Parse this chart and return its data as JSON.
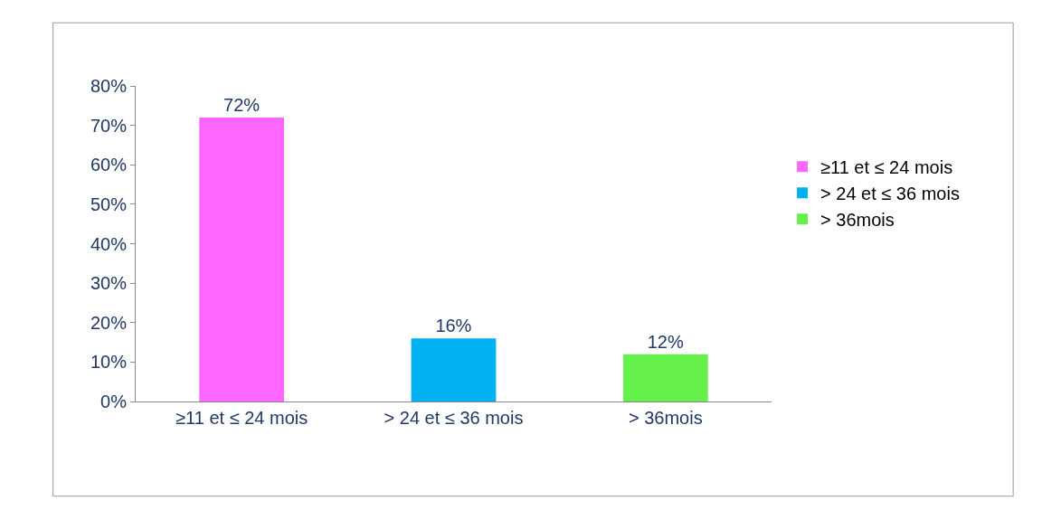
{
  "chart_data": {
    "type": "bar",
    "categories": [
      "≥11 et ≤ 24 mois",
      "> 24 et ≤ 36 mois",
      "> 36mois"
    ],
    "series": [
      {
        "name": "≥11 et ≤ 24 mois",
        "color": "#ff66ff",
        "values": [
          72,
          null,
          null
        ],
        "value_labels": [
          "72%",
          null,
          null
        ]
      },
      {
        "name": "> 24 et ≤ 36 mois",
        "color": "#00b0f0",
        "values": [
          null,
          16,
          null
        ],
        "value_labels": [
          null,
          "16%",
          null
        ]
      },
      {
        "name": "> 36mois",
        "color": "#66f04c",
        "values": [
          null,
          null,
          12
        ],
        "value_labels": [
          null,
          null,
          "12%"
        ]
      }
    ],
    "ylim": [
      0,
      80
    ],
    "yticks": [
      {
        "value": 0,
        "label": "0%"
      },
      {
        "value": 10,
        "label": "10%"
      },
      {
        "value": 20,
        "label": "20%"
      },
      {
        "value": 30,
        "label": "30%"
      },
      {
        "value": 40,
        "label": "40%"
      },
      {
        "value": 50,
        "label": "50%"
      },
      {
        "value": 60,
        "label": "60%"
      },
      {
        "value": 70,
        "label": "70%"
      },
      {
        "value": 80,
        "label": "80%"
      }
    ],
    "grid": false,
    "legend": "right"
  }
}
